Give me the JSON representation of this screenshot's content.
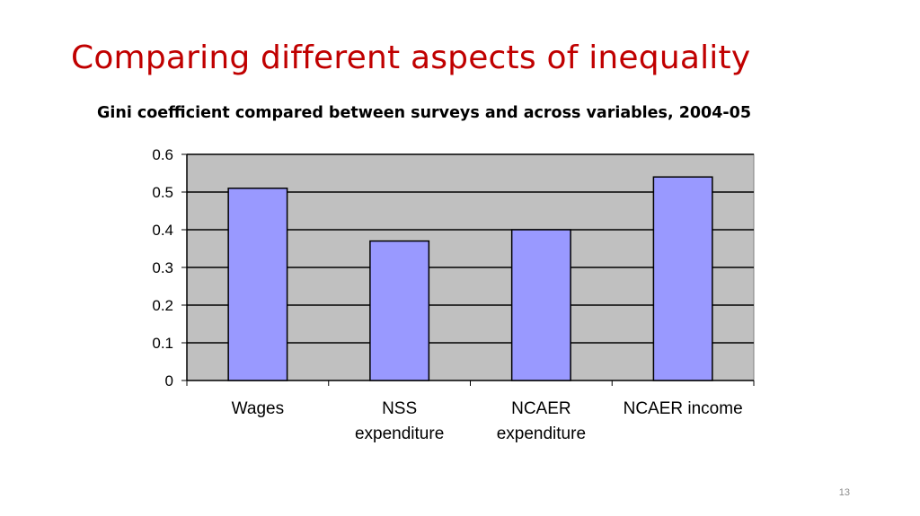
{
  "slide": {
    "title": "Comparing different aspects of inequality",
    "number": "13"
  },
  "colors": {
    "title": "#c00000",
    "bar": "#9999ff",
    "plot_background": "#c0c0c0"
  },
  "chart_data": {
    "type": "bar",
    "title": "Gini coefficient compared between surveys and across variables, 2004-05",
    "categories": [
      "Wages",
      "NSS expenditure",
      "NCAER expenditure",
      "NCAER income"
    ],
    "category_lines": [
      [
        "Wages"
      ],
      [
        "NSS",
        "expenditure"
      ],
      [
        "NCAER",
        "expenditure"
      ],
      [
        "NCAER income"
      ]
    ],
    "values": [
      0.51,
      0.37,
      0.4,
      0.54
    ],
    "ylim": [
      0,
      0.6
    ],
    "yticks": [
      "0",
      "0.1",
      "0.2",
      "0.3",
      "0.4",
      "0.5",
      "0.6"
    ],
    "grid": true,
    "legend": "none"
  }
}
